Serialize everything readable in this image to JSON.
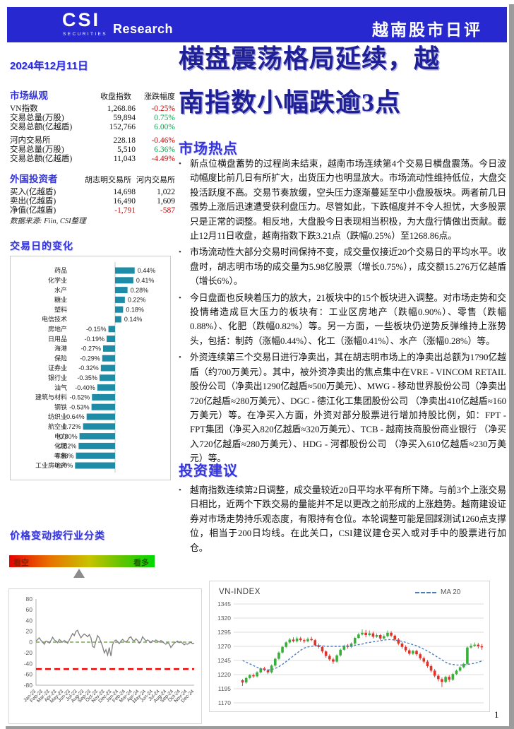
{
  "header": {
    "logo_csi": "CSI",
    "logo_securities": "SECURITIES",
    "logo_research": "Research",
    "report_type": "越南股市日评"
  },
  "date": "2024年12月11日",
  "main_title": "横盘震荡格局延续，越\n南指数小幅跌逾3点",
  "market_overview": {
    "title": "市场纵观",
    "col_index": "收盘指数",
    "col_change": "涨跌幅度",
    "rows": [
      {
        "label": "VN指数",
        "value": "1,268.86",
        "change": "-0.25%",
        "dir": "down",
        "gap": false
      },
      {
        "label": "交易总量(万股)",
        "value": "59,894",
        "change": "0.75%",
        "dir": "up",
        "gap": false
      },
      {
        "label": "交易总额(亿越盾)",
        "value": "152,766",
        "change": "6.00%",
        "dir": "up",
        "gap": false
      },
      {
        "label": "河内交易所",
        "value": "228.18",
        "change": "-0.46%",
        "dir": "down",
        "gap": true
      },
      {
        "label": "交易总量(万股)",
        "value": "5,510",
        "change": "6.36%",
        "dir": "up",
        "gap": false
      },
      {
        "label": "交易总额(亿越盾)",
        "value": "11,043",
        "change": "-4.49%",
        "dir": "down",
        "gap": false
      }
    ]
  },
  "foreign_investors": {
    "title": "外国投资者",
    "col_hose": "胡志明交易所",
    "col_hnx": "河内交易所",
    "rows": [
      {
        "label": "买入(亿越盾)",
        "hose": "14,698",
        "hnx": "1,022",
        "negative": false
      },
      {
        "label": "卖出(亿越盾)",
        "hose": "16,490",
        "hnx": "1,609",
        "negative": false
      },
      {
        "label": "净值(亿越盾)",
        "hose": "-1,791",
        "hnx": "-587",
        "negative": true
      }
    ]
  },
  "source_note": "数据来源: Fiin, CSI整理",
  "sections": {
    "daily_change": "交易日的变化",
    "market_highlights": "市场热点",
    "investment_advice": "投资建议",
    "price_by_sector": "价格变动按行业分类"
  },
  "highlights_bullets": [
    "新点位横盘蓄势的过程尚未结束，越南市场连续第4个交易日横盘震荡。今日波动幅度比前几日有所扩大，出货压力也明显放大。市场流动性维持低位，大盘交投活跃度不高。交易节奏放缓，空头压力逐渐蔓延至中小盘股板块。两者前几日强势上涨后迅速遭受获利盘压力。尽管如此，下跌幅度并不令人担忧，大多股票只是正常的调整。相反地，大盘股今日表现相当积极，为大盘行情做出贡献。截止12月11日收盘，越南指数下跌3.21点（跌幅0.25%）至1268.86点。",
    "市场流动性大部分交易时间保持不变，成交量仅接近20个交易日的平均水平。收盘时，胡志明市场的成交量为5.98亿股票（增长0.75%），成交额15.276万亿越盾（增长6%）。",
    "今日盘面也反映着压力的放大，21板块中的15个板块进入调整。对市场走势和交投情绪造成巨大压力的板块有：工业区房地产（跌幅0.90%）、零售（跌幅0.88%）、化肥（跌幅0.82%）等。另一方面，一些板块仍逆势反弹维持上涨势头，包括：制药（涨幅0.44%）、化工（涨幅0.41%）、水产（涨幅0.28%）等。",
    "外资连续第三个交易日进行净卖出，其在胡志明市场上的净卖出总额为1790亿越盾（约700万美元）。其中，被外资净卖出的焦点集中在VRE - VINCOM RETAIL股份公司（净卖出1290亿越盾≈500万美元）、MWG - 移动世界股份公司（净卖出720亿越盾≈280万美元）、DGC - 德江化工集团股份公司 （净卖出410亿越盾≈160万美元）等。在净买入方面，外资对部分股票进行增加持股比例，如：FPT - FPT集团（净买入820亿越盾≈320万美元）、TCB - 越南技商股份商业银行 （净买入720亿越盾≈280万美元）、HDG - 河都股份公司 （净买入610亿越盾≈230万美元）等。"
  ],
  "advice_bullets": [
    "越南指数连续第2日调整，成交量较近20日平均水平有所下降。与前3个上涨交易日相比，近两个下跌交易的量能并不足以更改之前形成的上涨趋势。越南建设证券对市场走势持乐观态度，有限持有仓位。本轮调整可能是回踩测试1260点支撑位，相当于200日均线。在此关口，CSI建议建仓买入或对手中的股票进行加仓。"
  ],
  "sentiment": {
    "bearish_label": "看空",
    "bullish_label": "看多",
    "marker_pos_pct": 48
  },
  "page_number": "1",
  "colors": {
    "header_blue": "#2828d0",
    "heading_blue": "#3535dd",
    "title_navy": "#1f1f96",
    "bar_teal": "#1e8ca6",
    "up_green": "#00b050",
    "down_red": "#d40000",
    "candle_green": "#3aae3a",
    "candle_red": "#e03228",
    "ma_blue": "#4a7dc0",
    "zero_dash_green": "#70ad47",
    "ref_dash_red": "#ff0000",
    "line_gray": "#7f7f7f"
  },
  "chart_data": [
    {
      "type": "bar",
      "title": "交易日的变化",
      "unit": "%",
      "orientation": "horizontal",
      "bar_color": "#1e8ca6",
      "categories": [
        "药品",
        "化学业",
        "水产",
        "糖业",
        "塑料",
        "电信技术",
        "房地产",
        "日用品",
        "海港",
        "保险",
        "证券业",
        "银行业",
        "油气",
        "建筑与材料",
        "钢铁",
        "纺织业",
        "航空业",
        "电力",
        "化肥",
        "零售",
        "工业房地产"
      ],
      "values": [
        0.44,
        0.41,
        0.28,
        0.22,
        0.18,
        0.14,
        -0.15,
        -0.19,
        -0.27,
        -0.29,
        -0.32,
        -0.35,
        -0.4,
        -0.52,
        -0.53,
        -0.64,
        -0.72,
        -0.8,
        -0.82,
        -0.88,
        -0.9
      ]
    },
    {
      "type": "line",
      "title": "",
      "ylim": [
        -80,
        80
      ],
      "yticks": [
        80,
        60,
        40,
        20,
        0,
        -20,
        -40,
        -60,
        -80
      ],
      "zero_line": {
        "y": 0,
        "color": "#70ad47",
        "style": "dashed"
      },
      "ref_line": {
        "y": -50,
        "color": "#ff0000",
        "style": "dashed"
      },
      "line_color": "#7f7f7f",
      "x_labels": [
        "Jan-23",
        "Feb-23",
        "Mar-23",
        "Apr-23",
        "May-23",
        "Jun-23",
        "Jul-23",
        "Aug-23",
        "Sep-23",
        "Oct-23",
        "Nov-23",
        "Dec-23",
        "Jan-24",
        "Feb-24",
        "Mar-24",
        "Apr-24",
        "May-24",
        "Jun-24",
        "Jul-24",
        "Aug-24",
        "Sep-24",
        "Oct-24",
        "Nov-24",
        "Dec-24"
      ],
      "values": [
        2,
        5,
        8,
        3,
        0,
        -4,
        2,
        1,
        -2,
        3,
        9,
        4,
        2,
        -1,
        5,
        2,
        0,
        3,
        1,
        -2,
        4,
        10,
        16,
        12,
        20,
        22,
        14,
        8,
        12,
        15,
        13,
        10,
        14,
        8,
        -8,
        -10,
        2,
        12,
        8,
        0,
        -8,
        -20,
        -14,
        -24,
        -10,
        -26,
        -5,
        2,
        4,
        1,
        -3,
        2,
        5,
        2,
        0,
        3,
        8,
        10,
        4,
        2,
        6,
        3,
        -2,
        1,
        10,
        6,
        2,
        4,
        2,
        -1,
        3,
        1,
        4,
        2,
        0,
        3,
        1,
        -2,
        -4,
        -1,
        -3,
        -10,
        -6,
        -2,
        0,
        2,
        -1,
        1,
        -2,
        -5,
        -3,
        -4,
        -2,
        0,
        -3,
        -2
      ]
    },
    {
      "type": "candlestick",
      "title": "VN-INDEX",
      "legend_label": "MA 20",
      "yticks": [
        1345,
        1320,
        1295,
        1270,
        1245,
        1220,
        1195,
        1170
      ],
      "ylim": [
        1158,
        1352
      ],
      "up_color": "#3aae3a",
      "down_color": "#e03228",
      "ma_color": "#4a7dc0",
      "candles": [
        [
          1210,
          1212,
          1200,
          1206
        ],
        [
          1206,
          1216,
          1204,
          1214
        ],
        [
          1214,
          1221,
          1212,
          1219
        ],
        [
          1219,
          1222,
          1214,
          1217
        ],
        [
          1217,
          1226,
          1215,
          1224
        ],
        [
          1224,
          1233,
          1222,
          1231
        ],
        [
          1231,
          1234,
          1226,
          1228
        ],
        [
          1228,
          1230,
          1221,
          1224
        ],
        [
          1224,
          1238,
          1222,
          1236
        ],
        [
          1236,
          1250,
          1234,
          1248
        ],
        [
          1248,
          1261,
          1246,
          1259
        ],
        [
          1259,
          1271,
          1257,
          1269
        ],
        [
          1269,
          1279,
          1267,
          1277
        ],
        [
          1277,
          1285,
          1275,
          1282
        ],
        [
          1282,
          1286,
          1277,
          1279
        ],
        [
          1279,
          1287,
          1277,
          1284
        ],
        [
          1284,
          1287,
          1278,
          1281
        ],
        [
          1281,
          1284,
          1276,
          1279
        ],
        [
          1279,
          1286,
          1277,
          1283
        ],
        [
          1283,
          1287,
          1279,
          1281
        ],
        [
          1281,
          1283,
          1270,
          1272
        ],
        [
          1272,
          1275,
          1266,
          1269
        ],
        [
          1269,
          1271,
          1258,
          1261
        ],
        [
          1261,
          1263,
          1250,
          1253
        ],
        [
          1253,
          1256,
          1244,
          1247
        ],
        [
          1247,
          1250,
          1239,
          1243
        ],
        [
          1243,
          1256,
          1241,
          1254
        ],
        [
          1254,
          1266,
          1252,
          1264
        ],
        [
          1264,
          1273,
          1262,
          1271
        ],
        [
          1271,
          1274,
          1266,
          1269
        ],
        [
          1269,
          1277,
          1267,
          1275
        ],
        [
          1275,
          1287,
          1273,
          1285
        ],
        [
          1285,
          1294,
          1283,
          1291
        ],
        [
          1291,
          1300,
          1289,
          1294
        ],
        [
          1294,
          1299,
          1286,
          1290
        ],
        [
          1290,
          1298,
          1288,
          1293
        ],
        [
          1293,
          1296,
          1284,
          1287
        ],
        [
          1287,
          1293,
          1285,
          1290
        ],
        [
          1290,
          1292,
          1281,
          1284
        ],
        [
          1284,
          1291,
          1282,
          1288
        ],
        [
          1288,
          1298,
          1286,
          1294
        ],
        [
          1294,
          1297,
          1286,
          1289
        ],
        [
          1289,
          1291,
          1279,
          1282
        ],
        [
          1282,
          1285,
          1272,
          1275
        ],
        [
          1275,
          1278,
          1266,
          1269
        ],
        [
          1269,
          1272,
          1260,
          1263
        ],
        [
          1263,
          1266,
          1254,
          1257
        ],
        [
          1257,
          1264,
          1255,
          1262
        ],
        [
          1262,
          1264,
          1253,
          1256
        ],
        [
          1256,
          1259,
          1246,
          1249
        ],
        [
          1249,
          1252,
          1240,
          1243
        ],
        [
          1243,
          1246,
          1232,
          1235
        ],
        [
          1235,
          1238,
          1224,
          1227
        ],
        [
          1227,
          1230,
          1215,
          1218
        ],
        [
          1218,
          1221,
          1208,
          1212
        ],
        [
          1212,
          1215,
          1198,
          1207
        ],
        [
          1207,
          1218,
          1205,
          1216
        ],
        [
          1216,
          1219,
          1207,
          1211
        ],
        [
          1211,
          1223,
          1209,
          1221
        ],
        [
          1221,
          1229,
          1219,
          1227
        ],
        [
          1227,
          1235,
          1225,
          1233
        ],
        [
          1233,
          1241,
          1231,
          1239
        ],
        [
          1239,
          1270,
          1237,
          1268
        ],
        [
          1268,
          1275,
          1266,
          1271
        ],
        [
          1271,
          1277,
          1269,
          1273
        ],
        [
          1273,
          1276,
          1266,
          1270
        ],
        [
          1270,
          1274,
          1264,
          1269
        ]
      ],
      "ma20": [
        1245,
        1242,
        1239,
        1236,
        1233,
        1230,
        1229,
        1228,
        1229,
        1231,
        1234,
        1238,
        1243,
        1248,
        1253,
        1258,
        1263,
        1267,
        1269,
        1270,
        1271,
        1271,
        1271,
        1270,
        1270,
        1270,
        1270,
        1270,
        1270,
        1271,
        1271,
        1272,
        1273,
        1274,
        1276,
        1277,
        1278,
        1279,
        1280,
        1281,
        1282,
        1282,
        1281,
        1280,
        1279,
        1277,
        1275,
        1273,
        1271,
        1268,
        1265,
        1262,
        1258,
        1254,
        1250,
        1246,
        1242,
        1239,
        1238,
        1237,
        1237,
        1237,
        1238,
        1239,
        1240,
        1242,
        1244
      ]
    }
  ]
}
